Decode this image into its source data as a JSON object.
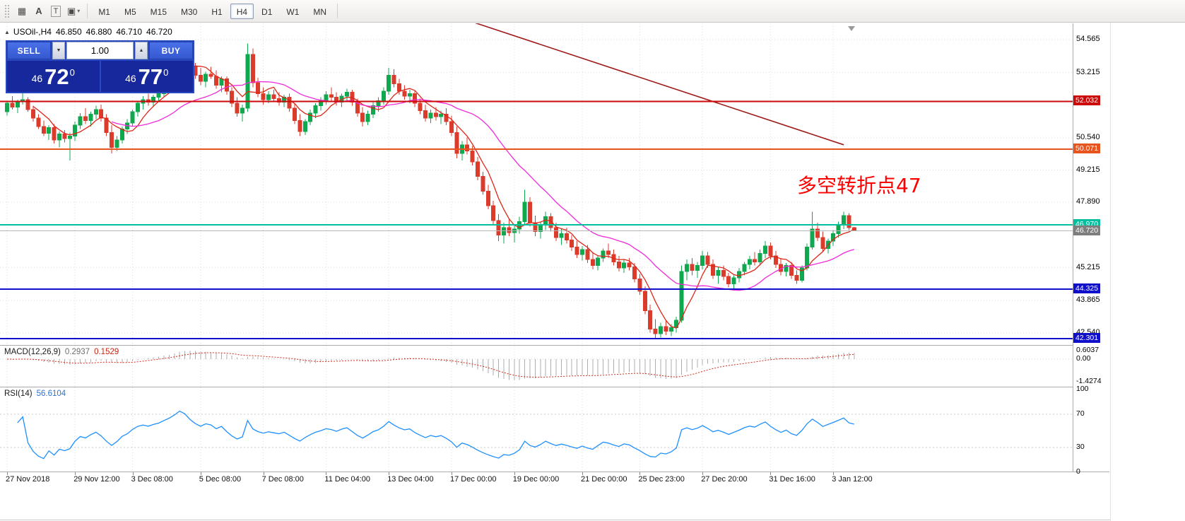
{
  "toolbar": {
    "tools": [
      {
        "name": "grid-dots-icon",
        "glyph": "▦",
        "boxed": false,
        "bold": false,
        "caret": false
      },
      {
        "name": "text-a-tool-icon",
        "glyph": "A",
        "boxed": false,
        "bold": true,
        "caret": false
      },
      {
        "name": "text-boxed-t-tool-icon",
        "glyph": "T",
        "boxed": true,
        "bold": false,
        "caret": false
      },
      {
        "name": "draw-objects-icon",
        "glyph": "▣",
        "boxed": false,
        "bold": false,
        "caret": true
      }
    ],
    "timeframes": [
      "M1",
      "M5",
      "M15",
      "M30",
      "H1",
      "H4",
      "D1",
      "W1",
      "MN"
    ],
    "active_timeframe": "H4"
  },
  "quote": {
    "symbol_period": "USOil-,H4",
    "open": "46.850",
    "high": "46.880",
    "low": "46.710",
    "close": "46.720"
  },
  "trade_panel": {
    "sell_label": "SELL",
    "buy_label": "BUY",
    "volume": "1.00",
    "sell_price": {
      "big_left": "46",
      "big": "72",
      "sup": "0"
    },
    "buy_price": {
      "big_left": "46",
      "big": "77",
      "sup": "0"
    }
  },
  "annotation": {
    "text": "多空转折点47",
    "color": "#FF0000"
  },
  "price_scale_ticks": [
    "54.565",
    "53.215",
    "50.540",
    "49.215",
    "47.890",
    "45.215",
    "43.865",
    "42.540"
  ],
  "hlines": [
    {
      "price": 52.032,
      "label": "52.032",
      "color": "#cc0a0a",
      "label_bg": "#cc0a0a",
      "width": 2
    },
    {
      "price": 50.071,
      "label": "50.071",
      "color": "#e8541e",
      "label_bg": "#e8541e",
      "width": 2
    },
    {
      "price": 46.97,
      "label": "46.970",
      "color": "#00bf9d",
      "label_bg": "#00bf9d",
      "width": 2
    },
    {
      "price": 44.325,
      "label": "44.325",
      "color": "#1010cc",
      "label_bg": "#1010cc",
      "width": 2
    },
    {
      "price": 42.301,
      "label": "42.301",
      "color": "#1010cc",
      "label_bg": "#1010cc",
      "width": 2
    }
  ],
  "current_price": {
    "label": "46.720",
    "price": 46.72,
    "line_color": "#b8b8b8",
    "label_bg": "#7e7e7e"
  },
  "chart_data": {
    "type": "candlestick",
    "title": "USOil- H4",
    "ylim": [
      42.07,
      55.23
    ],
    "levels": [
      52.032,
      50.071,
      46.97,
      44.325,
      42.301
    ],
    "up_color": "#0fa84e",
    "down_color": "#db3b2b",
    "ma_fast": {
      "period": 6,
      "color": "#dd2718"
    },
    "ma_slow": {
      "period": 21,
      "color": "#f02bd8"
    },
    "trendline": {
      "from_bar": 86,
      "from_price": 55.5,
      "to_bar": 160,
      "to_price": 50.25,
      "color": "#9e1b1b"
    },
    "x_labels": [
      {
        "bar": 0,
        "label": "27 Nov 2018"
      },
      {
        "bar": 13,
        "label": "29 Nov 12:00"
      },
      {
        "bar": 24,
        "label": "3 Dec 08:00"
      },
      {
        "bar": 37,
        "label": "5 Dec 08:00"
      },
      {
        "bar": 49,
        "label": "7 Dec 08:00"
      },
      {
        "bar": 61,
        "label": "11 Dec 04:00"
      },
      {
        "bar": 73,
        "label": "13 Dec 04:00"
      },
      {
        "bar": 85,
        "label": "17 Dec 00:00"
      },
      {
        "bar": 97,
        "label": "19 Dec 00:00"
      },
      {
        "bar": 110,
        "label": "21 Dec 00:00"
      },
      {
        "bar": 121,
        "label": "25 Dec 23:00"
      },
      {
        "bar": 133,
        "label": "27 Dec 20:00"
      },
      {
        "bar": 146,
        "label": "31 Dec 16:00"
      },
      {
        "bar": 158,
        "label": "3 Jan 12:00"
      }
    ],
    "candles": [
      [
        51.6,
        52.05,
        51.45,
        51.95
      ],
      [
        51.95,
        52.25,
        51.7,
        51.8
      ],
      [
        51.8,
        52.1,
        51.55,
        52.02
      ],
      [
        52.02,
        52.4,
        51.9,
        52.1
      ],
      [
        52.1,
        52.2,
        51.6,
        51.7
      ],
      [
        51.7,
        51.85,
        51.2,
        51.35
      ],
      [
        51.35,
        51.5,
        50.9,
        51.0
      ],
      [
        51.0,
        51.25,
        50.6,
        50.72
      ],
      [
        50.72,
        51.05,
        50.45,
        50.95
      ],
      [
        50.95,
        51.1,
        50.3,
        50.45
      ],
      [
        50.45,
        50.8,
        50.15,
        50.7
      ],
      [
        50.7,
        50.85,
        50.35,
        50.5
      ],
      [
        50.5,
        50.75,
        49.6,
        50.6
      ],
      [
        50.6,
        51.2,
        50.4,
        51.05
      ],
      [
        51.05,
        51.55,
        50.9,
        51.4
      ],
      [
        51.4,
        51.75,
        51.1,
        51.25
      ],
      [
        51.25,
        51.6,
        51.0,
        51.5
      ],
      [
        51.5,
        51.85,
        51.3,
        51.7
      ],
      [
        51.7,
        51.9,
        51.2,
        51.35
      ],
      [
        51.35,
        51.5,
        50.6,
        50.75
      ],
      [
        50.75,
        51.05,
        49.9,
        50.15
      ],
      [
        50.15,
        50.6,
        50.0,
        50.45
      ],
      [
        50.45,
        51.0,
        50.3,
        50.9
      ],
      [
        50.9,
        51.3,
        50.7,
        51.15
      ],
      [
        51.15,
        51.7,
        51.0,
        51.6
      ],
      [
        51.6,
        52.05,
        51.4,
        51.95
      ],
      [
        51.95,
        52.25,
        51.7,
        52.1
      ],
      [
        52.1,
        52.35,
        51.85,
        52.0
      ],
      [
        52.0,
        52.3,
        51.8,
        52.2
      ],
      [
        52.2,
        52.45,
        52.0,
        52.35
      ],
      [
        52.35,
        52.75,
        52.2,
        52.65
      ],
      [
        52.65,
        53.1,
        52.5,
        52.95
      ],
      [
        52.95,
        53.55,
        52.8,
        53.4
      ],
      [
        53.4,
        54.3,
        53.25,
        54.1
      ],
      [
        54.1,
        54.5,
        53.7,
        53.9
      ],
      [
        53.9,
        54.15,
        53.3,
        53.45
      ],
      [
        53.45,
        53.6,
        52.95,
        53.1
      ],
      [
        53.1,
        53.4,
        52.7,
        52.85
      ],
      [
        52.85,
        53.25,
        52.6,
        53.15
      ],
      [
        53.15,
        53.45,
        52.95,
        53.05
      ],
      [
        53.05,
        53.3,
        52.55,
        52.7
      ],
      [
        52.7,
        53.05,
        52.4,
        52.95
      ],
      [
        52.95,
        53.05,
        52.3,
        52.45
      ],
      [
        52.45,
        52.6,
        51.8,
        51.95
      ],
      [
        51.95,
        52.2,
        51.4,
        51.55
      ],
      [
        51.55,
        51.9,
        51.2,
        51.75
      ],
      [
        51.75,
        54.4,
        51.6,
        53.95
      ],
      [
        53.95,
        54.2,
        52.6,
        52.8
      ],
      [
        52.8,
        53.0,
        52.2,
        52.35
      ],
      [
        52.35,
        52.6,
        51.9,
        52.1
      ],
      [
        52.1,
        52.45,
        51.95,
        52.3
      ],
      [
        52.3,
        52.5,
        52.0,
        52.15
      ],
      [
        52.15,
        52.4,
        51.85,
        52.0
      ],
      [
        52.0,
        52.3,
        51.8,
        52.2
      ],
      [
        52.2,
        52.35,
        51.6,
        51.75
      ],
      [
        51.75,
        51.95,
        51.1,
        51.25
      ],
      [
        51.25,
        51.5,
        50.6,
        50.8
      ],
      [
        50.8,
        51.3,
        50.65,
        51.2
      ],
      [
        51.2,
        51.7,
        51.05,
        51.55
      ],
      [
        51.55,
        51.95,
        51.35,
        51.85
      ],
      [
        51.85,
        52.2,
        51.65,
        52.05
      ],
      [
        52.05,
        52.45,
        51.9,
        52.3
      ],
      [
        52.3,
        52.6,
        52.05,
        52.2
      ],
      [
        52.2,
        52.4,
        51.85,
        52.0
      ],
      [
        52.0,
        52.35,
        51.8,
        52.25
      ],
      [
        52.25,
        52.55,
        52.05,
        52.4
      ],
      [
        52.4,
        52.5,
        51.85,
        52.0
      ],
      [
        52.0,
        52.15,
        51.4,
        51.55
      ],
      [
        51.55,
        51.8,
        51.0,
        51.2
      ],
      [
        51.2,
        51.65,
        51.05,
        51.5
      ],
      [
        51.5,
        52.0,
        51.35,
        51.85
      ],
      [
        51.85,
        52.2,
        51.6,
        52.05
      ],
      [
        52.05,
        52.6,
        51.9,
        52.45
      ],
      [
        52.45,
        53.4,
        52.3,
        53.1
      ],
      [
        53.1,
        53.35,
        52.6,
        52.75
      ],
      [
        52.75,
        52.95,
        52.3,
        52.45
      ],
      [
        52.45,
        52.7,
        52.1,
        52.25
      ],
      [
        52.25,
        52.5,
        51.95,
        52.35
      ],
      [
        52.35,
        52.45,
        51.8,
        51.95
      ],
      [
        51.95,
        52.15,
        51.5,
        51.65
      ],
      [
        51.65,
        51.9,
        51.2,
        51.35
      ],
      [
        51.35,
        51.7,
        51.15,
        51.55
      ],
      [
        51.55,
        51.8,
        51.25,
        51.4
      ],
      [
        51.4,
        51.65,
        51.1,
        51.5
      ],
      [
        51.5,
        51.75,
        51.05,
        51.2
      ],
      [
        51.2,
        51.45,
        50.6,
        50.75
      ],
      [
        50.75,
        51.0,
        49.7,
        49.9
      ],
      [
        49.9,
        50.4,
        49.6,
        50.25
      ],
      [
        50.25,
        50.55,
        49.85,
        50.0
      ],
      [
        50.0,
        50.2,
        49.4,
        49.55
      ],
      [
        49.55,
        49.75,
        48.8,
        48.95
      ],
      [
        48.95,
        49.15,
        48.2,
        48.35
      ],
      [
        48.35,
        48.6,
        47.6,
        47.75
      ],
      [
        47.75,
        47.95,
        47.0,
        47.15
      ],
      [
        47.15,
        47.4,
        46.3,
        46.55
      ],
      [
        46.55,
        47.05,
        46.2,
        46.85
      ],
      [
        46.85,
        47.2,
        46.5,
        46.65
      ],
      [
        46.65,
        46.95,
        46.25,
        46.8
      ],
      [
        46.8,
        47.3,
        46.6,
        47.1
      ],
      [
        47.1,
        48.4,
        46.95,
        47.9
      ],
      [
        47.9,
        48.1,
        46.9,
        47.05
      ],
      [
        47.05,
        47.35,
        46.5,
        46.7
      ],
      [
        46.7,
        47.1,
        46.4,
        46.95
      ],
      [
        46.95,
        47.5,
        46.75,
        47.3
      ],
      [
        47.3,
        47.45,
        46.7,
        46.85
      ],
      [
        46.85,
        47.05,
        46.3,
        46.45
      ],
      [
        46.45,
        46.8,
        46.15,
        46.6
      ],
      [
        46.6,
        46.85,
        46.2,
        46.35
      ],
      [
        46.35,
        46.55,
        45.9,
        46.05
      ],
      [
        46.05,
        46.3,
        45.6,
        45.75
      ],
      [
        45.75,
        46.1,
        45.5,
        45.95
      ],
      [
        45.95,
        46.15,
        45.4,
        45.55
      ],
      [
        45.55,
        45.85,
        45.15,
        45.3
      ],
      [
        45.3,
        45.7,
        45.1,
        45.6
      ],
      [
        45.6,
        46.0,
        45.45,
        45.9
      ],
      [
        45.9,
        46.2,
        45.6,
        45.75
      ],
      [
        45.75,
        45.95,
        45.3,
        45.45
      ],
      [
        45.45,
        45.7,
        45.05,
        45.2
      ],
      [
        45.2,
        45.55,
        45.0,
        45.4
      ],
      [
        45.4,
        45.6,
        45.1,
        45.25
      ],
      [
        45.25,
        45.4,
        44.6,
        44.75
      ],
      [
        44.75,
        44.95,
        44.1,
        44.25
      ],
      [
        44.25,
        44.45,
        43.3,
        43.45
      ],
      [
        43.45,
        43.7,
        42.55,
        42.7
      ],
      [
        42.7,
        43.1,
        42.3,
        42.5
      ],
      [
        42.5,
        42.95,
        42.35,
        42.8
      ],
      [
        42.8,
        43.05,
        42.45,
        42.6
      ],
      [
        42.6,
        42.9,
        42.4,
        42.75
      ],
      [
        42.75,
        43.2,
        42.55,
        43.05
      ],
      [
        43.05,
        45.3,
        42.95,
        45.05
      ],
      [
        45.05,
        45.55,
        44.7,
        45.35
      ],
      [
        45.35,
        45.6,
        44.9,
        45.1
      ],
      [
        45.1,
        45.45,
        44.8,
        45.3
      ],
      [
        45.3,
        45.9,
        45.15,
        45.7
      ],
      [
        45.7,
        45.85,
        45.2,
        45.35
      ],
      [
        45.35,
        45.55,
        44.75,
        44.9
      ],
      [
        44.9,
        45.25,
        44.55,
        45.1
      ],
      [
        45.1,
        45.3,
        44.7,
        44.85
      ],
      [
        44.85,
        45.0,
        44.4,
        44.55
      ],
      [
        44.55,
        44.9,
        44.35,
        44.8
      ],
      [
        44.8,
        45.2,
        44.6,
        45.05
      ],
      [
        45.05,
        45.45,
        44.9,
        45.35
      ],
      [
        45.35,
        45.7,
        45.15,
        45.55
      ],
      [
        45.55,
        45.85,
        45.3,
        45.45
      ],
      [
        45.45,
        45.95,
        45.3,
        45.8
      ],
      [
        45.8,
        46.3,
        45.6,
        46.1
      ],
      [
        46.1,
        46.25,
        45.55,
        45.7
      ],
      [
        45.7,
        45.9,
        45.2,
        45.35
      ],
      [
        45.35,
        45.6,
        44.9,
        45.05
      ],
      [
        45.05,
        45.4,
        44.85,
        45.3
      ],
      [
        45.3,
        45.45,
        44.75,
        44.9
      ],
      [
        44.9,
        45.1,
        44.55,
        44.7
      ],
      [
        44.7,
        45.3,
        44.6,
        45.2
      ],
      [
        45.2,
        46.2,
        45.1,
        46.05
      ],
      [
        46.05,
        47.5,
        45.95,
        46.8
      ],
      [
        46.8,
        47.05,
        46.3,
        46.45
      ],
      [
        46.45,
        46.7,
        45.85,
        46.0
      ],
      [
        46.0,
        46.4,
        45.8,
        46.3
      ],
      [
        46.3,
        46.75,
        46.1,
        46.6
      ],
      [
        46.6,
        47.1,
        46.45,
        46.95
      ],
      [
        46.95,
        47.5,
        46.8,
        47.35
      ],
      [
        47.35,
        47.45,
        46.75,
        46.85
      ],
      [
        46.85,
        46.88,
        46.71,
        46.72
      ]
    ]
  },
  "macd_panel": {
    "title": "MACD(12,26,9)",
    "value_main": "0.2937",
    "value_signal": "0.1529",
    "scale_labels": [
      {
        "text": "0.6037",
        "value": 0.6037
      },
      {
        "text": "0.00",
        "value": 0
      },
      {
        "text": "-1.4274",
        "value": -1.4274
      }
    ],
    "hist_color": "#adadad",
    "signal_color": "#d22b1b"
  },
  "rsi_panel": {
    "title": "RSI(14)",
    "value": "56.6104",
    "period": 14,
    "levels": [
      70,
      30
    ],
    "scale_labels": [
      "100",
      "70",
      "30",
      "0"
    ],
    "color": "#1e90ff"
  }
}
